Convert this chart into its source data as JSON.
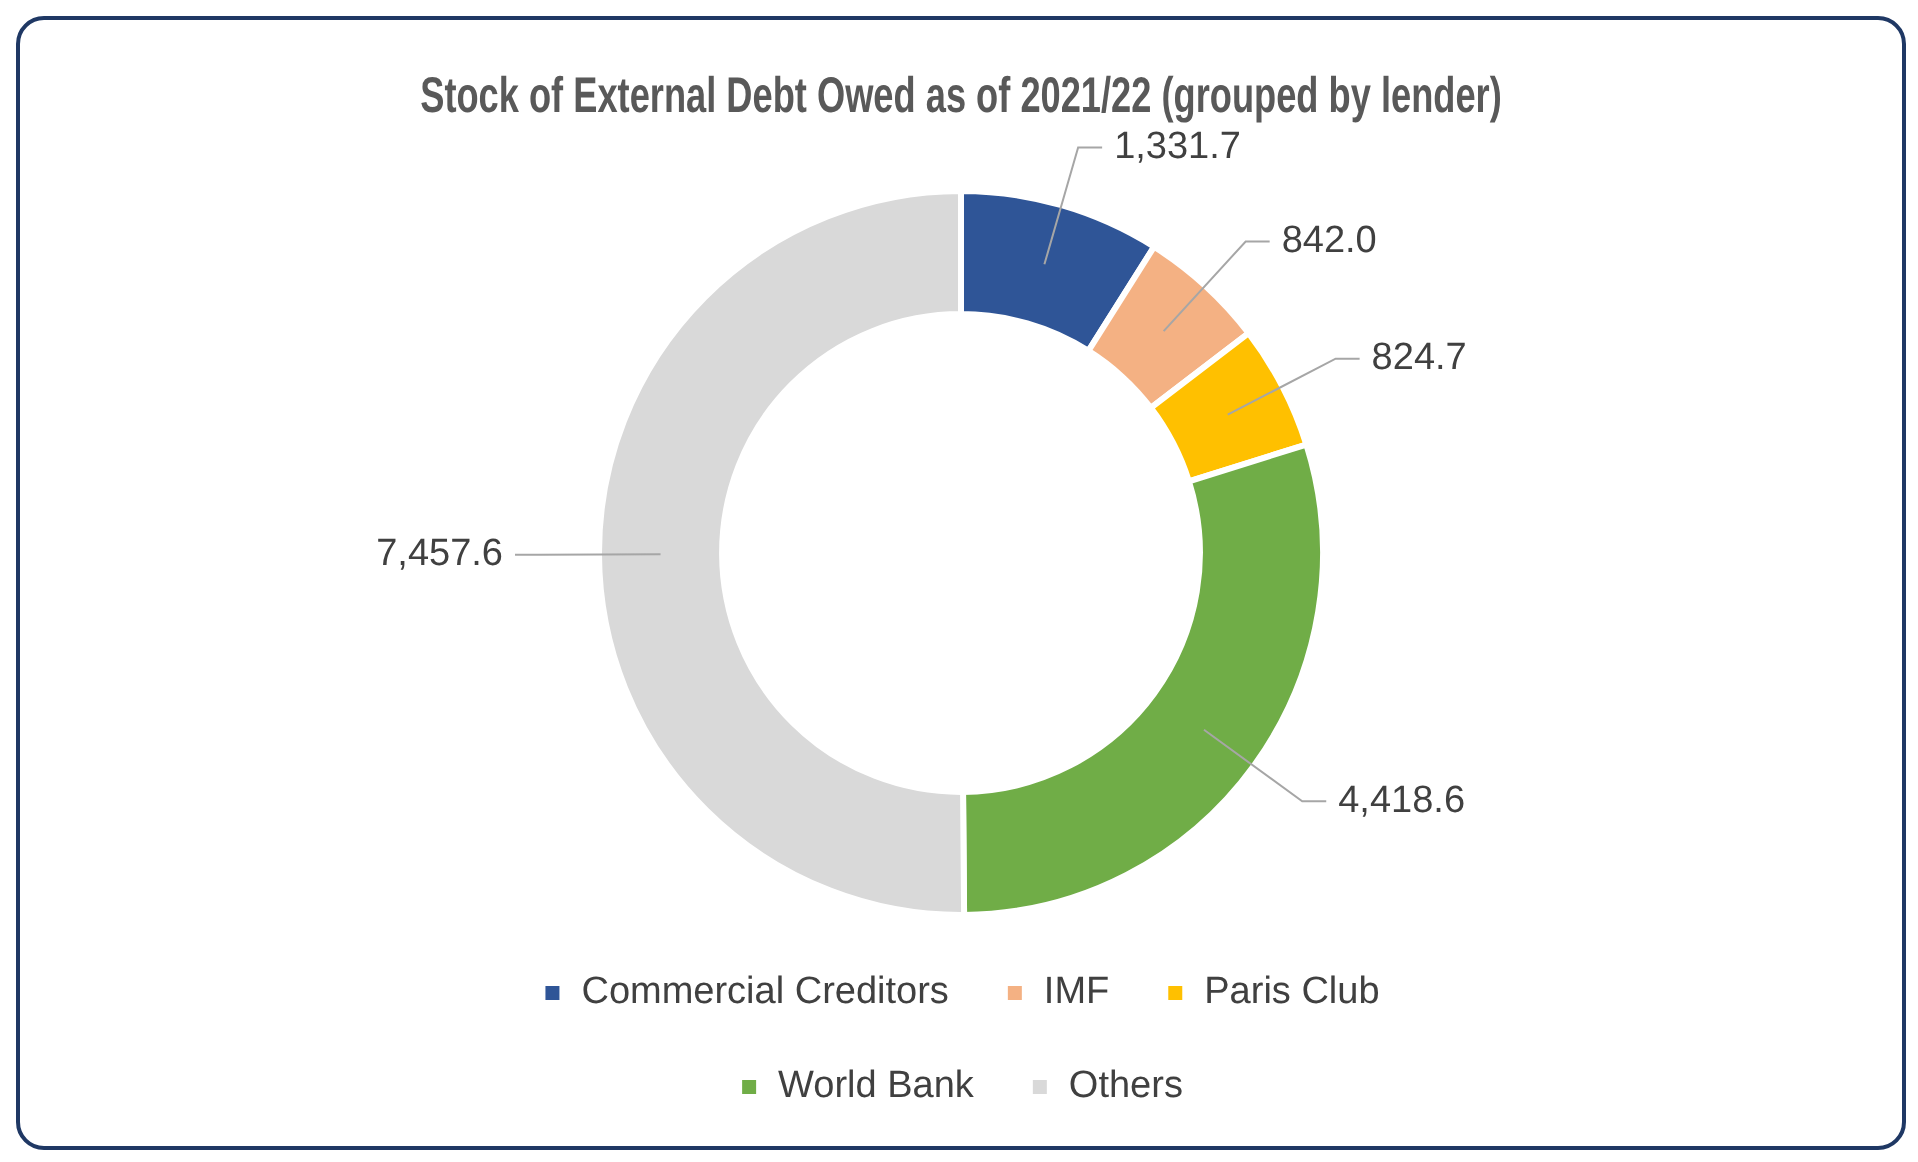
{
  "chart_data": {
    "type": "donut",
    "title": "Stock of External Debt Owed as of 2021/22 (grouped by lender)",
    "categories": [
      "Commercial Creditors",
      "IMF",
      "Paris Club",
      "World Bank",
      "Others"
    ],
    "values": [
      1331.7,
      842.0,
      824.7,
      4418.6,
      7457.6
    ],
    "value_labels": [
      "1,331.7",
      "842.0",
      "824.7",
      "4,418.6",
      "7,457.6"
    ],
    "colors": [
      "#2f5597",
      "#f4b183",
      "#ffc000",
      "#70ad47",
      "#d9d9d9"
    ],
    "legend": "bottom"
  }
}
